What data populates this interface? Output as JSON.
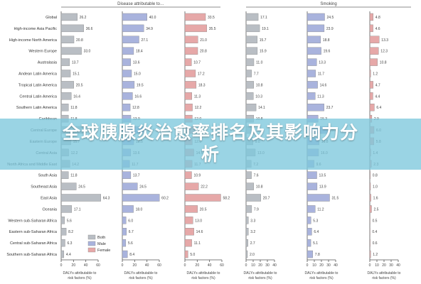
{
  "banner": {
    "title": "全球胰腺炎治愈率排名及其影响力分\n析"
  },
  "chart_data": {
    "type": "bar",
    "groups": [
      {
        "label": "Disease attributable to…",
        "panels": [
          0,
          1,
          2
        ]
      },
      {
        "label": "Smoking",
        "panels": [
          3,
          4,
          5
        ]
      }
    ],
    "categories": [
      "Global",
      "High-income Asia Pacific",
      "High-income North America",
      "Western Europe",
      "Australasia",
      "Andean Latin America",
      "Tropical Latin America",
      "Central Latin America",
      "Southern Latin America",
      "Caribbean",
      "Central Europe",
      "Eastern Europe",
      "Central Asia",
      "North Africa and Middle East",
      "South Asia",
      "Southeast Asia",
      "East Asia",
      "Oceania",
      "Western sub-Saharan Africa",
      "Eastern sub-Saharan Africa",
      "Central sub-Saharan Africa",
      "Southern sub-Saharan Africa"
    ],
    "legend": [
      {
        "name": "Both",
        "color": "#b9bec4"
      },
      {
        "name": "Male",
        "color": "#a9b3dd"
      },
      {
        "name": "Female",
        "color": "#e6a8a8"
      }
    ],
    "panels": [
      {
        "series": "Both",
        "color": "#b9bec4",
        "xlim": [
          0,
          60
        ],
        "ticks": [
          "0",
          "20",
          "40",
          "60"
        ],
        "xlabel": "DALYs attributable to\nrisk factors (%)",
        "values": [
          26.2,
          36.6,
          20.8,
          33.0,
          13.7,
          15.1,
          20.5,
          16.4,
          11.8,
          11.8,
          36.0,
          15.7,
          12.2,
          14.2,
          11.8,
          24.5,
          64.3,
          17.1,
          5.6,
          8.2,
          6.3,
          4.4
        ]
      },
      {
        "series": "Male",
        "color": "#a9b3dd",
        "xlim": [
          0,
          60
        ],
        "ticks": [
          "0",
          "20",
          "40",
          "60"
        ],
        "xlabel": "DALYs attributable to\nrisk factors (%)",
        "values": [
          40.0,
          34.9,
          27.1,
          18.4,
          13.6,
          15.0,
          19.5,
          16.6,
          12.8,
          13.9,
          37.4,
          18.5,
          13.6,
          11.7,
          13.7,
          24.5,
          60.2,
          18.0,
          6.0,
          6.7,
          5.6,
          8.4
        ]
      },
      {
        "series": "Female",
        "color": "#e6a8a8",
        "xlim": [
          0,
          60
        ],
        "ticks": [
          "0",
          "20",
          "40",
          "60"
        ],
        "xlabel": "DALYs attributable to\nrisk factors (%)",
        "values": [
          33.5,
          35.5,
          21.0,
          20.8,
          10.7,
          17.2,
          18.3,
          11.3,
          12.2,
          12.0,
          16.0,
          12.0,
          14.5,
          11.7,
          10.9,
          22.2,
          58.2,
          20.5,
          13.0,
          14.6,
          11.1,
          5.0
        ]
      },
      {
        "series": "Both",
        "color": "#b9bec4",
        "xlim": [
          0,
          40
        ],
        "ticks": [
          "0",
          "10",
          "20",
          "30",
          "40"
        ],
        "xlabel": "DALYs attributable to\nrisk factors (%)",
        "values": [
          17.1,
          19.1,
          15.7,
          15.9,
          11.0,
          7.7,
          10.8,
          10.3,
          14.1,
          10.8,
          11.4,
          9.8,
          13.0,
          7.2,
          7.6,
          10.8,
          20.7,
          7.9,
          3.3,
          3.2,
          2.7,
          2.0
        ]
      },
      {
        "series": "Male",
        "color": "#a9b3dd",
        "xlim": [
          0,
          40
        ],
        "ticks": [
          "0",
          "10",
          "20",
          "30",
          "40"
        ],
        "xlabel": "DALYs attributable to\nrisk factors (%)",
        "values": [
          24.5,
          23.9,
          18.8,
          19.6,
          13.3,
          11.7,
          14.6,
          11.3,
          23.7,
          15.3,
          29.0,
          16.8,
          16.0,
          9.6,
          13.5,
          13.9,
          31.5,
          11.2,
          5.3,
          6.4,
          5.1,
          7.8
        ]
      },
      {
        "series": "Female",
        "color": "#e6a8a8",
        "xlim": [
          0,
          40
        ],
        "ticks": [
          "0",
          "10",
          "20",
          "30",
          "40"
        ],
        "xlabel": "DALYs attributable to\nrisk factors (%)",
        "values": [
          4.8,
          4.6,
          13.3,
          12.3,
          10.8,
          1.2,
          4.7,
          4.4,
          6.4,
          2.9,
          6.0,
          5.8,
          1.4,
          2.3,
          0.8,
          1.0,
          1.6,
          2.5,
          0.5,
          0.4,
          0.6,
          1.2
        ]
      }
    ]
  }
}
